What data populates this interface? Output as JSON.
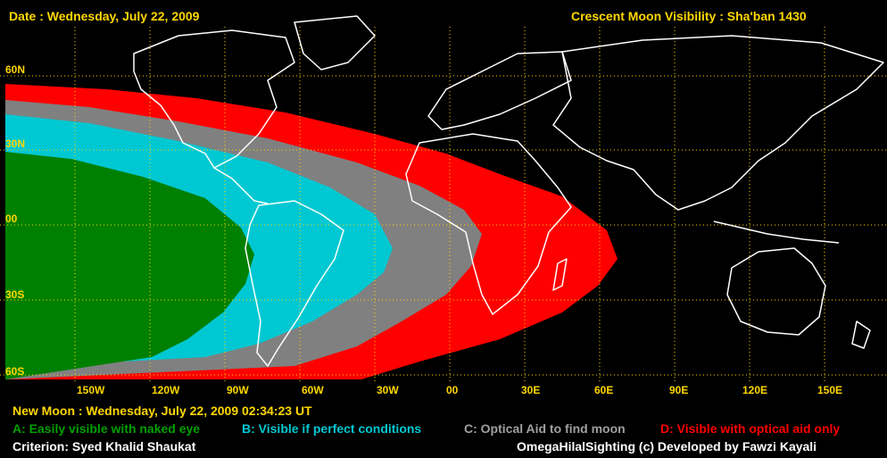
{
  "header": {
    "date": "Date : Wednesday, July 22, 2009",
    "title": "Crescent Moon Visibility : Sha'ban  1430"
  },
  "latitude_labels": [
    "60N",
    "30N",
    "00",
    "30S",
    "60S"
  ],
  "longitude_labels": [
    "150W",
    "120W",
    "90W",
    "60W",
    "30W",
    "00",
    "30E",
    "60E",
    "90E",
    "120E",
    "150E"
  ],
  "footer": {
    "new_moon": "New Moon : Wednesday, July 22, 2009  02:34:23  UT",
    "legend": {
      "a": "A: Easily visible with naked eye",
      "b": "B: Visible if perfect conditions",
      "c": "C: Optical Aid to find moon",
      "d": "D: Visible with optical aid only"
    },
    "criterion": "Criterion: Syed Khalid Shaukat",
    "credit": "OmegaHilalSighting  (c)  Developed by Fawzi Kayali"
  },
  "colors": {
    "zone_a": "#008000",
    "zone_b": "#00c8d2",
    "zone_c": "#808080",
    "zone_d": "#ff0000",
    "grid": "#ffd700",
    "coast": "#ffffff",
    "text_yellow": "#ffd700"
  }
}
